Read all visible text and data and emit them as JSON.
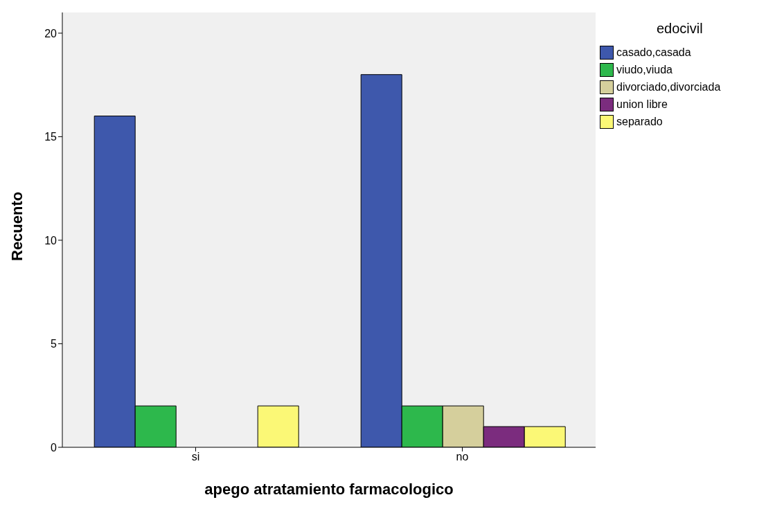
{
  "chart_data": {
    "type": "bar",
    "xlabel": "apego atratamiento farmacologico",
    "ylabel": "Recuento",
    "legend_title": "edocivil",
    "categories": [
      "si",
      "no"
    ],
    "series": [
      {
        "name": "casado,casada",
        "color": "#3e58ac",
        "values": [
          16,
          18
        ]
      },
      {
        "name": "viudo,viuda",
        "color": "#2db84c",
        "values": [
          2,
          2
        ]
      },
      {
        "name": "divorciado,divorciada",
        "color": "#d5cf9c",
        "values": [
          0,
          2
        ]
      },
      {
        "name": "union libre",
        "color": "#7b2c7e",
        "values": [
          0,
          1
        ]
      },
      {
        "name": "separado",
        "color": "#fbf876",
        "values": [
          2,
          1
        ]
      }
    ],
    "ylim": [
      0,
      21
    ],
    "yticks": [
      0,
      5,
      10,
      15,
      20
    ],
    "grid": false,
    "legend": "top right"
  }
}
